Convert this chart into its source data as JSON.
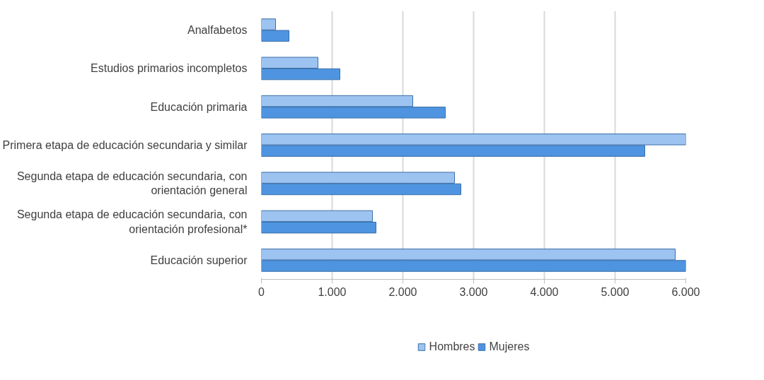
{
  "chart_data": {
    "type": "bar",
    "orientation": "horizontal",
    "categories": [
      "Analfabetos",
      "Estudios primarios incompletos",
      "Educación primaria",
      "Primera etapa de educación secundaria y similar",
      "Segunda etapa de educación secundaria, con orientación general",
      "Segunda etapa de educación secundaria, con orientación profesional*",
      "Educación superior"
    ],
    "series": [
      {
        "name": "Hombres",
        "color": "#9dc3f0",
        "values": [
          200,
          800,
          2140,
          6000,
          2730,
          1570,
          5850
        ]
      },
      {
        "name": "Mujeres",
        "color": "#4e94e0",
        "values": [
          390,
          1110,
          2600,
          5420,
          2820,
          1620,
          6000
        ]
      }
    ],
    "xlim": [
      0,
      6000
    ],
    "xticks": [
      0,
      {
        "value": 1000,
        "label": "1.000"
      },
      {
        "value": 2000,
        "label": "2.000"
      },
      {
        "value": 3000,
        "label": "3.000"
      },
      {
        "value": 4000,
        "label": "4.000"
      },
      {
        "value": 5000,
        "label": "5.000"
      },
      {
        "value": 6000,
        "label": "6.000"
      }
    ],
    "grid": "x",
    "legend": "bottom"
  }
}
